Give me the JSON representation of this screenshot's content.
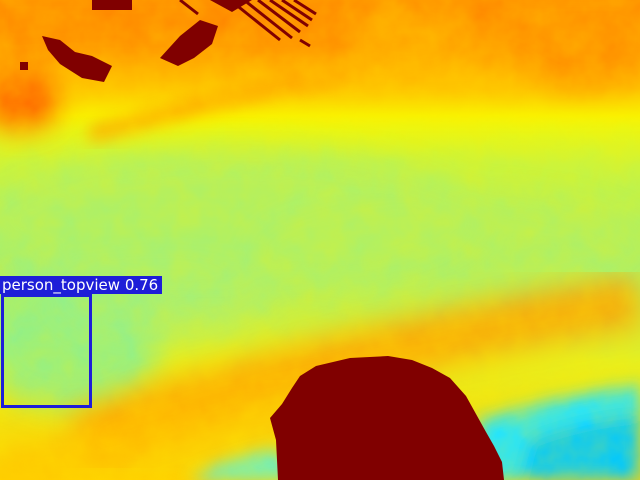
{
  "scene": {
    "type": "depth-colormap",
    "colormap": "jet",
    "view": "top-down"
  },
  "detections": [
    {
      "label": "person_topview",
      "score": "0.76",
      "box_color": "#1e1ed8",
      "label_background": "#1e1ed8",
      "label_text_color": "#ffffff"
    }
  ]
}
